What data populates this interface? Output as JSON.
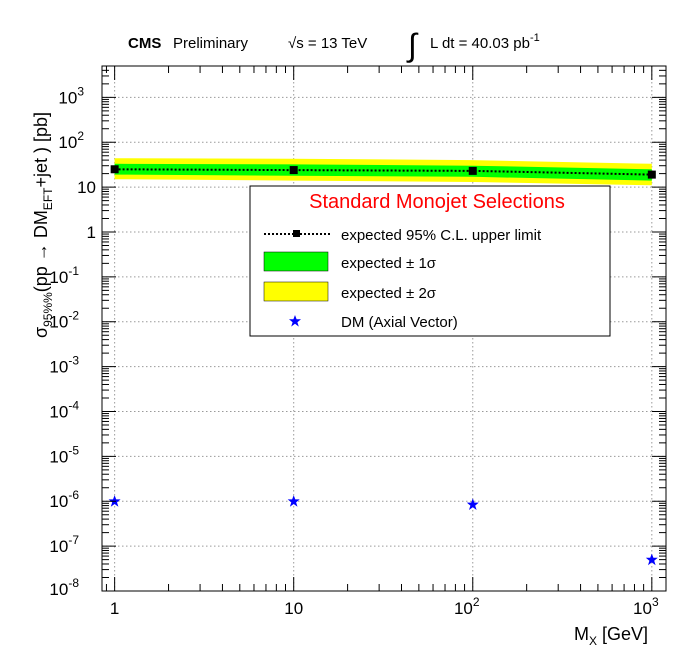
{
  "header": {
    "experiment": "CMS",
    "status": "Preliminary",
    "energy_label": "√s = 13 TeV",
    "lumi_base": "L dt = 40.03 pb",
    "lumi_exp": "-1"
  },
  "legend": {
    "title": "Standard Monojet Selections",
    "title_color": "#ff0000",
    "entries": [
      {
        "label": "expected 95% C.L. upper limit",
        "symbol": "dotted-line-square"
      },
      {
        "label": "expected ± 1σ",
        "symbol": "band",
        "color": "#00ff00"
      },
      {
        "label": "expected ± 2σ",
        "symbol": "band",
        "color": "#ffff00"
      },
      {
        "label": "DM (Axial Vector)",
        "symbol": "star",
        "color": "#0000ff"
      }
    ]
  },
  "chart_data": {
    "type": "line",
    "xscale": "log",
    "yscale": "log",
    "xlim": [
      0.85,
      1200
    ],
    "ylim": [
      1e-08,
      5000
    ],
    "x_ticks": [
      {
        "v": 1,
        "base": "1",
        "exp": ""
      },
      {
        "v": 10,
        "base": "10",
        "exp": ""
      },
      {
        "v": 100,
        "base": "10",
        "exp": "2"
      },
      {
        "v": 1000,
        "base": "10",
        "exp": "3"
      }
    ],
    "y_ticks": [
      {
        "v": 1e-08,
        "base": "10",
        "exp": "-8"
      },
      {
        "v": 1e-07,
        "base": "10",
        "exp": "-7"
      },
      {
        "v": 1e-06,
        "base": "10",
        "exp": "-6"
      },
      {
        "v": 1e-05,
        "base": "10",
        "exp": "-5"
      },
      {
        "v": 0.0001,
        "base": "10",
        "exp": "-4"
      },
      {
        "v": 0.001,
        "base": "10",
        "exp": "-3"
      },
      {
        "v": 0.01,
        "base": "10",
        "exp": "-2"
      },
      {
        "v": 0.1,
        "base": "10",
        "exp": "-1"
      },
      {
        "v": 1,
        "base": "1",
        "exp": ""
      },
      {
        "v": 10,
        "base": "10",
        "exp": ""
      },
      {
        "v": 100,
        "base": "10",
        "exp": "2"
      },
      {
        "v": 1000,
        "base": "10",
        "exp": "3"
      }
    ],
    "xlabel": {
      "main": "M",
      "sub": "X",
      "tail": " [GeV]"
    },
    "ylabel": {
      "sigma": "σ",
      "sub1": "95%%",
      "mid": "(pp → DM",
      "sub2": "EFT",
      "tail": "+jet ) [pb]"
    },
    "grid": true,
    "series": [
      {
        "name": "expected 95% C.L. upper limit",
        "x": [
          1,
          10,
          100,
          1000
        ],
        "y": [
          25,
          24,
          23,
          19
        ],
        "color": "#000000",
        "style": "dotted",
        "marker": "square"
      },
      {
        "name": "expected ± 1σ",
        "x": [
          1,
          10,
          100,
          1000
        ],
        "low": [
          19,
          18,
          17,
          14
        ],
        "high": [
          33,
          32,
          30,
          25
        ],
        "color": "#00ff00"
      },
      {
        "name": "expected ± 2σ",
        "x": [
          1,
          10,
          100,
          1000
        ],
        "low": [
          15,
          14,
          13,
          11
        ],
        "high": [
          44,
          43,
          40,
          33
        ],
        "color": "#ffff00"
      },
      {
        "name": "DM (Axial Vector)",
        "x": [
          1,
          10,
          100,
          1000
        ],
        "y": [
          1e-06,
          1e-06,
          8.5e-07,
          5e-08
        ],
        "color": "#0000ff",
        "marker": "star"
      }
    ]
  }
}
